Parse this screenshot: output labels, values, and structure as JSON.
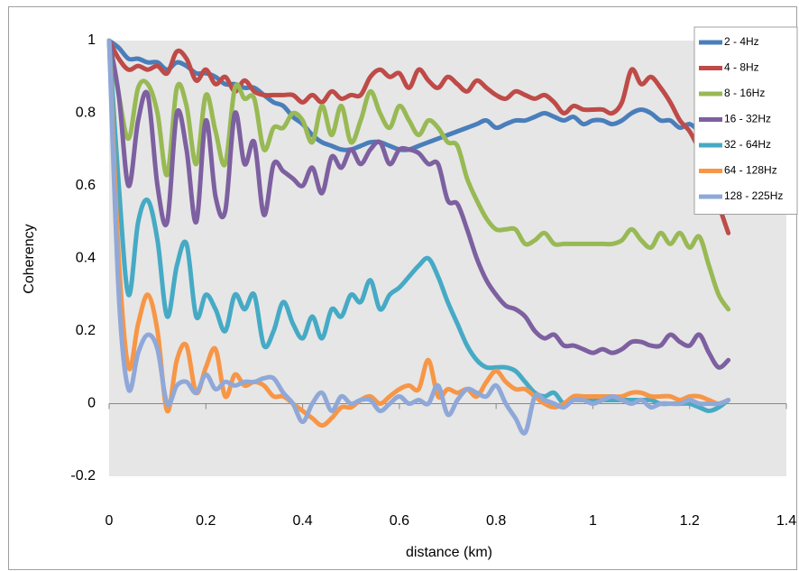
{
  "chart_data": {
    "type": "line",
    "x_label": "distance (km)",
    "y_label": "Coherency",
    "xlim": [
      0,
      1.4
    ],
    "xticks": [
      0,
      0.2,
      0.4,
      0.6,
      0.8,
      1,
      1.2,
      1.4
    ],
    "ylim": [
      -0.2,
      1
    ],
    "yticks": [
      -0.2,
      0,
      0.2,
      0.4,
      0.6,
      0.8,
      1
    ],
    "grid": false,
    "legend": "upper right",
    "x": [
      0,
      0.02,
      0.04,
      0.06,
      0.08,
      0.1,
      0.12,
      0.14,
      0.16,
      0.18,
      0.2,
      0.22,
      0.24,
      0.26,
      0.28,
      0.3,
      0.32,
      0.34,
      0.36,
      0.38,
      0.4,
      0.42,
      0.44,
      0.46,
      0.48,
      0.5,
      0.52,
      0.54,
      0.56,
      0.58,
      0.6,
      0.62,
      0.64,
      0.66,
      0.68,
      0.7,
      0.72,
      0.74,
      0.76,
      0.78,
      0.8,
      0.82,
      0.84,
      0.86,
      0.88,
      0.9,
      0.92,
      0.94,
      0.96,
      0.98,
      1,
      1.02,
      1.04,
      1.06,
      1.08,
      1.1,
      1.12,
      1.14,
      1.16,
      1.18,
      1.2,
      1.22,
      1.24,
      1.26,
      1.28
    ],
    "series": [
      {
        "name": "2 - 4Hz",
        "color": "#4a7ebb",
        "values": [
          1,
          0.98,
          0.95,
          0.95,
          0.94,
          0.94,
          0.92,
          0.94,
          0.93,
          0.91,
          0.91,
          0.9,
          0.88,
          0.88,
          0.87,
          0.87,
          0.85,
          0.83,
          0.82,
          0.79,
          0.77,
          0.74,
          0.72,
          0.71,
          0.7,
          0.7,
          0.71,
          0.72,
          0.72,
          0.71,
          0.7,
          0.7,
          0.71,
          0.72,
          0.73,
          0.74,
          0.75,
          0.76,
          0.77,
          0.78,
          0.76,
          0.77,
          0.78,
          0.78,
          0.79,
          0.8,
          0.79,
          0.78,
          0.79,
          0.77,
          0.78,
          0.78,
          0.77,
          0.78,
          0.8,
          0.81,
          0.8,
          0.78,
          0.78,
          0.76,
          0.77,
          0.75,
          0.73,
          0.71,
          0.7
        ]
      },
      {
        "name": "4 - 8Hz",
        "color": "#be4b48",
        "values": [
          1,
          0.95,
          0.92,
          0.93,
          0.92,
          0.93,
          0.91,
          0.97,
          0.95,
          0.89,
          0.92,
          0.88,
          0.9,
          0.86,
          0.89,
          0.86,
          0.85,
          0.85,
          0.85,
          0.85,
          0.83,
          0.85,
          0.83,
          0.86,
          0.84,
          0.85,
          0.85,
          0.9,
          0.92,
          0.9,
          0.91,
          0.87,
          0.92,
          0.89,
          0.87,
          0.9,
          0.88,
          0.86,
          0.89,
          0.87,
          0.85,
          0.84,
          0.86,
          0.85,
          0.84,
          0.85,
          0.83,
          0.8,
          0.82,
          0.81,
          0.81,
          0.81,
          0.8,
          0.83,
          0.92,
          0.88,
          0.9,
          0.87,
          0.83,
          0.78,
          0.75,
          0.7,
          0.65,
          0.55,
          0.47
        ]
      },
      {
        "name": "8 - 16Hz",
        "color": "#98b954",
        "values": [
          1,
          0.85,
          0.73,
          0.87,
          0.88,
          0.8,
          0.63,
          0.87,
          0.82,
          0.66,
          0.85,
          0.75,
          0.66,
          0.87,
          0.84,
          0.84,
          0.7,
          0.76,
          0.76,
          0.8,
          0.78,
          0.72,
          0.82,
          0.74,
          0.82,
          0.72,
          0.78,
          0.86,
          0.8,
          0.76,
          0.82,
          0.78,
          0.74,
          0.78,
          0.76,
          0.72,
          0.71,
          0.62,
          0.56,
          0.51,
          0.48,
          0.48,
          0.48,
          0.44,
          0.45,
          0.47,
          0.44,
          0.44,
          0.44,
          0.44,
          0.44,
          0.44,
          0.44,
          0.45,
          0.48,
          0.45,
          0.43,
          0.47,
          0.44,
          0.47,
          0.43,
          0.46,
          0.38,
          0.3,
          0.26
        ]
      },
      {
        "name": "16 - 32Hz",
        "color": "#7d60a0",
        "values": [
          1,
          0.85,
          0.6,
          0.78,
          0.85,
          0.6,
          0.5,
          0.8,
          0.7,
          0.5,
          0.78,
          0.57,
          0.53,
          0.8,
          0.66,
          0.72,
          0.52,
          0.66,
          0.64,
          0.62,
          0.6,
          0.65,
          0.58,
          0.68,
          0.65,
          0.7,
          0.66,
          0.7,
          0.72,
          0.66,
          0.7,
          0.7,
          0.69,
          0.66,
          0.66,
          0.56,
          0.55,
          0.48,
          0.4,
          0.34,
          0.3,
          0.27,
          0.26,
          0.24,
          0.2,
          0.18,
          0.19,
          0.16,
          0.16,
          0.15,
          0.14,
          0.15,
          0.14,
          0.15,
          0.17,
          0.17,
          0.16,
          0.16,
          0.19,
          0.17,
          0.16,
          0.19,
          0.14,
          0.1,
          0.12
        ]
      },
      {
        "name": "32 - 64Hz",
        "color": "#46aac5",
        "values": [
          1,
          0.6,
          0.3,
          0.5,
          0.56,
          0.45,
          0.24,
          0.38,
          0.44,
          0.24,
          0.3,
          0.26,
          0.2,
          0.3,
          0.26,
          0.3,
          0.16,
          0.2,
          0.28,
          0.22,
          0.18,
          0.24,
          0.18,
          0.26,
          0.24,
          0.3,
          0.28,
          0.34,
          0.26,
          0.3,
          0.32,
          0.35,
          0.38,
          0.4,
          0.35,
          0.28,
          0.22,
          0.16,
          0.12,
          0.1,
          0.1,
          0.1,
          0.09,
          0.06,
          0.03,
          0.02,
          0.03,
          0,
          0.01,
          0.01,
          0.01,
          0.01,
          0.01,
          0.01,
          0.01,
          0.01,
          0.01,
          0,
          0,
          0,
          0,
          -0.01,
          -0.02,
          -0.01,
          0.01
        ]
      },
      {
        "name": "64 - 128Hz",
        "color": "#f79646",
        "values": [
          1,
          0.4,
          0.1,
          0.22,
          0.3,
          0.2,
          -0.02,
          0.12,
          0.16,
          0.03,
          0.1,
          0.15,
          0.02,
          0.08,
          0.05,
          0.06,
          0.05,
          0.02,
          0.02,
          0,
          -0.02,
          -0.04,
          -0.06,
          -0.04,
          -0.01,
          -0.01,
          0.01,
          0.02,
          0,
          0.02,
          0.04,
          0.05,
          0.04,
          0.12,
          0.02,
          0.04,
          0.03,
          0.04,
          0.02,
          0.06,
          0.09,
          0.06,
          0.04,
          0.04,
          0.02,
          0,
          -0.01,
          0,
          0.02,
          0.02,
          0.02,
          0.02,
          0.02,
          0.02,
          0.03,
          0.03,
          0.02,
          0.02,
          0.02,
          0.01,
          0.02,
          0.02,
          0.01,
          0,
          0.01
        ]
      },
      {
        "name": "128 - 225Hz",
        "color": "#8fa8d8",
        "values": [
          1,
          0.3,
          0.04,
          0.14,
          0.19,
          0.15,
          0,
          0.05,
          0.06,
          0.03,
          0.08,
          0.04,
          0.06,
          0.05,
          0.06,
          0.06,
          0.07,
          0.07,
          0.03,
          0,
          -0.05,
          0,
          0.03,
          -0.02,
          0.02,
          0,
          0.01,
          0.01,
          -0.02,
          0,
          0.02,
          0,
          0.01,
          0,
          0.05,
          -0.03,
          0.01,
          0.04,
          0.03,
          0.02,
          0.05,
          0,
          -0.04,
          -0.08,
          0.02,
          0.01,
          0,
          -0.01,
          0.01,
          0.01,
          0,
          0.01,
          0.02,
          0.01,
          0,
          0.01,
          -0.01,
          0,
          0,
          0,
          0.01,
          0,
          0,
          0,
          0.01
        ]
      }
    ]
  }
}
